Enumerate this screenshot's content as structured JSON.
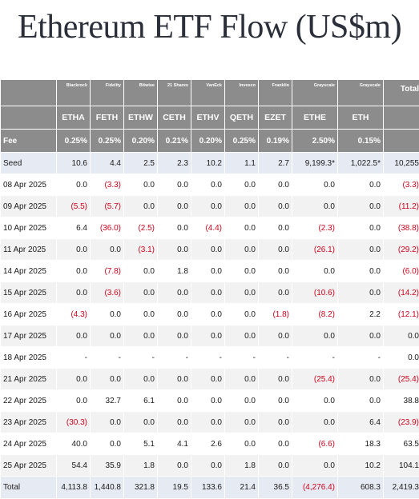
{
  "title": "Ethereum ETF Flow (US$m)",
  "colors": {
    "header_bg": "#8c8c8c",
    "negative": "#d0021b",
    "highlight_row": "#e6eaf3",
    "stripe": "#f2f2f2"
  },
  "table": {
    "issuers": [
      "Blackrock",
      "Fidelity",
      "Bitwise",
      "21 Shares",
      "VanEck",
      "Invesco",
      "Franklin",
      "Grayscale",
      "Grayscale"
    ],
    "total_header": "Total",
    "tickers": [
      "ETHA",
      "FETH",
      "ETHW",
      "CETH",
      "ETHV",
      "QETH",
      "EZET",
      "ETHE",
      "ETH"
    ],
    "fee_label": "Fee",
    "fees": [
      "0.25%",
      "0.25%",
      "0.20%",
      "0.21%",
      "0.20%",
      "0.25%",
      "0.19%",
      "2.50%",
      "0.15%"
    ],
    "rows": [
      {
        "label": "Seed",
        "values": [
          "10.6",
          "4.4",
          "2.5",
          "2.3",
          "10.2",
          "1.1",
          "2.7",
          "9,199.3*",
          "1,022.5*",
          "10,255"
        ]
      },
      {
        "label": "08 Apr 2025",
        "values": [
          "0.0",
          "(3.3)",
          "0.0",
          "0.0",
          "0.0",
          "0.0",
          "0.0",
          "0.0",
          "0.0",
          "(3.3)"
        ]
      },
      {
        "label": "09 Apr 2025",
        "values": [
          "(5.5)",
          "(5.7)",
          "0.0",
          "0.0",
          "0.0",
          "0.0",
          "0.0",
          "0.0",
          "0.0",
          "(11.2)"
        ]
      },
      {
        "label": "10 Apr 2025",
        "values": [
          "6.4",
          "(36.0)",
          "(2.5)",
          "0.0",
          "(4.4)",
          "0.0",
          "0.0",
          "(2.3)",
          "0.0",
          "(38.8)"
        ]
      },
      {
        "label": "11 Apr 2025",
        "values": [
          "0.0",
          "0.0",
          "(3.1)",
          "0.0",
          "0.0",
          "0.0",
          "0.0",
          "(26.1)",
          "0.0",
          "(29.2)"
        ]
      },
      {
        "label": "14 Apr 2025",
        "values": [
          "0.0",
          "(7.8)",
          "0.0",
          "1.8",
          "0.0",
          "0.0",
          "0.0",
          "0.0",
          "0.0",
          "(6.0)"
        ]
      },
      {
        "label": "15 Apr 2025",
        "values": [
          "0.0",
          "(3.6)",
          "0.0",
          "0.0",
          "0.0",
          "0.0",
          "0.0",
          "(10.6)",
          "0.0",
          "(14.2)"
        ]
      },
      {
        "label": "16 Apr 2025",
        "values": [
          "(4.3)",
          "0.0",
          "0.0",
          "0.0",
          "0.0",
          "0.0",
          "(1.8)",
          "(8.2)",
          "2.2",
          "(12.1)"
        ]
      },
      {
        "label": "17 Apr 2025",
        "values": [
          "0.0",
          "0.0",
          "0.0",
          "0.0",
          "0.0",
          "0.0",
          "0.0",
          "0.0",
          "0.0",
          "0.0"
        ]
      },
      {
        "label": "18 Apr 2025",
        "values": [
          "-",
          "-",
          "-",
          "-",
          "-",
          "-",
          "-",
          "-",
          "-",
          "0.0"
        ]
      },
      {
        "label": "21 Apr 2025",
        "values": [
          "0.0",
          "0.0",
          "0.0",
          "0.0",
          "0.0",
          "0.0",
          "0.0",
          "(25.4)",
          "0.0",
          "(25.4)"
        ]
      },
      {
        "label": "22 Apr 2025",
        "values": [
          "0.0",
          "32.7",
          "6.1",
          "0.0",
          "0.0",
          "0.0",
          "0.0",
          "0.0",
          "0.0",
          "38.8"
        ]
      },
      {
        "label": "23 Apr 2025",
        "values": [
          "(30.3)",
          "0.0",
          "0.0",
          "0.0",
          "0.0",
          "0.0",
          "0.0",
          "0.0",
          "6.4",
          "(23.9)"
        ]
      },
      {
        "label": "24 Apr 2025",
        "values": [
          "40.0",
          "0.0",
          "5.1",
          "4.1",
          "2.6",
          "0.0",
          "0.0",
          "(6.6)",
          "18.3",
          "63.5"
        ]
      },
      {
        "label": "25 Apr 2025",
        "values": [
          "54.4",
          "35.9",
          "1.8",
          "0.0",
          "0.0",
          "1.8",
          "0.0",
          "0.0",
          "10.2",
          "104.1"
        ]
      },
      {
        "label": "Total",
        "values": [
          "4,113.8",
          "1,440.8",
          "321.8",
          "19.5",
          "133.6",
          "21.4",
          "36.5",
          "(4,276.4)",
          "608.3",
          "2,419.3"
        ]
      }
    ]
  }
}
